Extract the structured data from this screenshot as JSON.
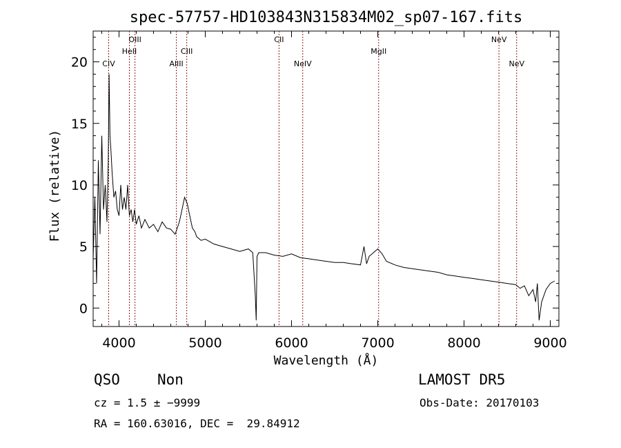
{
  "chart_data": {
    "type": "line",
    "title": "spec-57757-HD103843N315834M02_sp07-167.fits",
    "xlabel": "Wavelength (Å)",
    "ylabel": "Flux (relative)",
    "xlim": [
      3700,
      9100
    ],
    "ylim": [
      -1.5,
      22.5
    ],
    "xticks": [
      4000,
      5000,
      6000,
      7000,
      8000,
      9000
    ],
    "yticks": [
      0,
      5,
      10,
      15,
      20
    ],
    "grid": false,
    "series": [
      {
        "x": [
          3700,
          3720,
          3740,
          3760,
          3780,
          3800,
          3820,
          3840,
          3860,
          3875,
          3885,
          3895,
          3905,
          3920,
          3940,
          3960,
          3980,
          4000,
          4020,
          4040,
          4060,
          4080,
          4100,
          4120,
          4140,
          4160,
          4180,
          4200,
          4230,
          4260,
          4300,
          4350,
          4400,
          4450,
          4500,
          4550,
          4600,
          4650,
          4700,
          4730,
          4760,
          4790,
          4820,
          4850,
          4880,
          4900,
          4950,
          5000,
          5100,
          5200,
          5300,
          5400,
          5500,
          5550,
          5580,
          5590,
          5600,
          5620,
          5700,
          5800,
          5900,
          6000,
          6100,
          6200,
          6300,
          6400,
          6500,
          6600,
          6700,
          6800,
          6840,
          6870,
          6900,
          6950,
          7000,
          7050,
          7100,
          7200,
          7300,
          7400,
          7500,
          7600,
          7700,
          7800,
          7900,
          8000,
          8100,
          8200,
          8300,
          8400,
          8500,
          8600,
          8650,
          8700,
          8750,
          8800,
          8830,
          8850,
          8870,
          8900,
          8950,
          9000,
          9050
        ],
        "y": [
          4,
          9,
          2,
          12,
          6,
          14,
          8,
          10,
          7,
          12,
          19,
          14,
          13,
          11,
          9,
          9.5,
          8,
          7.5,
          10,
          8,
          9,
          8,
          10,
          7.5,
          8,
          7,
          8,
          6.8,
          7.5,
          6.5,
          7.2,
          6.5,
          6.8,
          6.2,
          7,
          6.5,
          6.4,
          6,
          7,
          8,
          9,
          8.5,
          7.5,
          6.5,
          6.2,
          5.8,
          5.5,
          5.6,
          5.2,
          5,
          4.8,
          4.6,
          4.8,
          4.5,
          1,
          -1,
          4.2,
          4.5,
          4.5,
          4.3,
          4.2,
          4.4,
          4.1,
          4,
          3.9,
          3.8,
          3.7,
          3.7,
          3.6,
          3.5,
          5,
          3.6,
          4.2,
          4.5,
          4.8,
          4.4,
          3.8,
          3.5,
          3.3,
          3.2,
          3.1,
          3,
          2.9,
          2.7,
          2.6,
          2.5,
          2.4,
          2.3,
          2.2,
          2.1,
          2,
          1.9,
          1.6,
          1.8,
          1,
          1.5,
          0.5,
          2,
          -1,
          0.5,
          1.5,
          2,
          2.2
        ]
      }
    ],
    "emission_lines": [
      {
        "name": "CIV",
        "x": 3880,
        "row": "low"
      },
      {
        "name": "HeII",
        "x": 4120,
        "row": "mid"
      },
      {
        "name": "OIII",
        "x": 4185,
        "row": "high"
      },
      {
        "name": "AlIII",
        "x": 4665,
        "row": "low"
      },
      {
        "name": "CIII",
        "x": 4785,
        "row": "mid"
      },
      {
        "name": "CII",
        "x": 5855,
        "row": "high"
      },
      {
        "name": "NeIV",
        "x": 6130,
        "row": "low"
      },
      {
        "name": "MgII",
        "x": 7010,
        "row": "mid"
      },
      {
        "name": "NeV",
        "x": 8405,
        "row": "high"
      },
      {
        "name": "NeV",
        "x": 8610,
        "row": "low"
      }
    ],
    "line_color": "#8b1a1a"
  },
  "info": {
    "class": "QSO",
    "subclass": "Non",
    "survey": "LAMOST DR5",
    "cz": "cz = 1.5 ± −9999",
    "obs_date": "Obs-Date: 20170103",
    "coords": "RA = 160.63016, DEC =  29.84912"
  }
}
